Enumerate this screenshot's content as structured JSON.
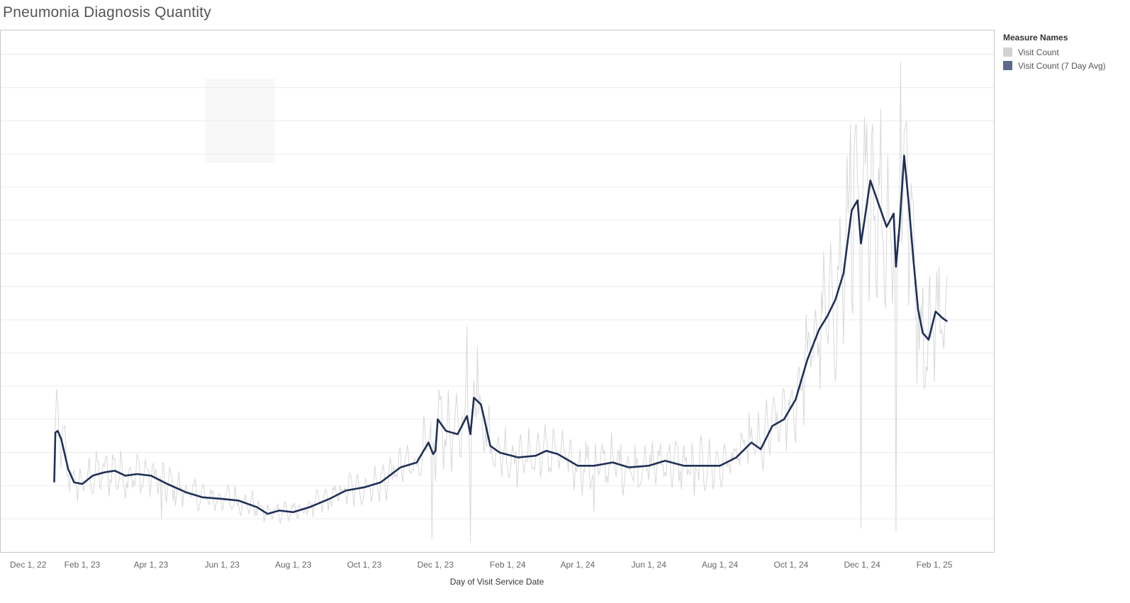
{
  "title": "Pneumonia Diagnosis Quantity",
  "legend": {
    "title": "Measure Names",
    "items": [
      {
        "label": "Visit Count",
        "color": "#d3d3d3"
      },
      {
        "label": "Visit Count (7 Day Avg)",
        "color": "#5b6a8c"
      }
    ]
  },
  "colors": {
    "raw_line": "#d8d8d8",
    "avg_line": "#1f2f57",
    "grid": "#ececec",
    "frame": "#c8c8c8",
    "shaded_box": "#f8f8f8"
  },
  "chart_data": {
    "type": "line",
    "title": "Pneumonia Diagnosis Quantity",
    "xlabel": "Day of Visit Service Date",
    "ylabel": "",
    "y_axis_labels_shown": false,
    "grid": true,
    "legend_position": "right",
    "x_ticks": [
      "Dec 1, 22",
      "Feb 1, 23",
      "Apr 1, 23",
      "Jun 1, 23",
      "Aug 1, 23",
      "Oct 1, 23",
      "Dec 1, 23",
      "Feb 1, 24",
      "Apr 1, 24",
      "Jun 1, 24",
      "Aug 1, 24",
      "Oct 1, 24",
      "Dec 1, 24",
      "Feb 1, 25"
    ],
    "xlim": [
      "2022-12-01",
      "2025-03-24"
    ],
    "ylim": [
      0,
      15.7
    ],
    "series": [
      {
        "name": "Visit Count (7 Day Avg)",
        "points": [
          [
            "2023-01-08",
            2.1
          ],
          [
            "2023-01-09",
            3.6
          ],
          [
            "2023-01-11",
            3.65
          ],
          [
            "2023-01-14",
            3.4
          ],
          [
            "2023-01-20",
            2.5
          ],
          [
            "2023-01-25",
            2.1
          ],
          [
            "2023-02-01",
            2.05
          ],
          [
            "2023-02-10",
            2.3
          ],
          [
            "2023-02-20",
            2.4
          ],
          [
            "2023-03-01",
            2.45
          ],
          [
            "2023-03-10",
            2.3
          ],
          [
            "2023-03-20",
            2.35
          ],
          [
            "2023-04-01",
            2.3
          ],
          [
            "2023-04-15",
            2.05
          ],
          [
            "2023-05-01",
            1.8
          ],
          [
            "2023-05-15",
            1.65
          ],
          [
            "2023-06-01",
            1.6
          ],
          [
            "2023-06-15",
            1.55
          ],
          [
            "2023-07-01",
            1.35
          ],
          [
            "2023-07-10",
            1.15
          ],
          [
            "2023-07-20",
            1.25
          ],
          [
            "2023-08-01",
            1.2
          ],
          [
            "2023-08-15",
            1.35
          ],
          [
            "2023-09-01",
            1.6
          ],
          [
            "2023-09-15",
            1.85
          ],
          [
            "2023-10-01",
            1.95
          ],
          [
            "2023-10-15",
            2.1
          ],
          [
            "2023-11-01",
            2.55
          ],
          [
            "2023-11-15",
            2.7
          ],
          [
            "2023-11-25",
            3.3
          ],
          [
            "2023-11-29",
            2.95
          ],
          [
            "2023-12-01",
            3.05
          ],
          [
            "2023-12-03",
            4.0
          ],
          [
            "2023-12-10",
            3.65
          ],
          [
            "2023-12-20",
            3.55
          ],
          [
            "2023-12-28",
            4.1
          ],
          [
            "2023-12-31",
            3.55
          ],
          [
            "2024-01-03",
            4.65
          ],
          [
            "2024-01-09",
            4.45
          ],
          [
            "2024-01-12",
            4.0
          ],
          [
            "2024-01-17",
            3.2
          ],
          [
            "2024-01-25",
            3.0
          ],
          [
            "2024-02-10",
            2.85
          ],
          [
            "2024-02-25",
            2.9
          ],
          [
            "2024-03-05",
            3.05
          ],
          [
            "2024-03-15",
            2.95
          ],
          [
            "2024-04-01",
            2.6
          ],
          [
            "2024-04-15",
            2.6
          ],
          [
            "2024-05-01",
            2.7
          ],
          [
            "2024-05-15",
            2.55
          ],
          [
            "2024-06-01",
            2.6
          ],
          [
            "2024-06-15",
            2.75
          ],
          [
            "2024-07-01",
            2.6
          ],
          [
            "2024-07-15",
            2.6
          ],
          [
            "2024-08-01",
            2.6
          ],
          [
            "2024-08-15",
            2.85
          ],
          [
            "2024-08-28",
            3.3
          ],
          [
            "2024-09-05",
            3.1
          ],
          [
            "2024-09-15",
            3.8
          ],
          [
            "2024-09-25",
            4.0
          ],
          [
            "2024-10-05",
            4.6
          ],
          [
            "2024-10-15",
            5.8
          ],
          [
            "2024-10-25",
            6.7
          ],
          [
            "2024-11-01",
            7.1
          ],
          [
            "2024-11-08",
            7.6
          ],
          [
            "2024-11-15",
            8.4
          ],
          [
            "2024-11-22",
            10.3
          ],
          [
            "2024-11-27",
            10.6
          ],
          [
            "2024-11-30",
            9.3
          ],
          [
            "2024-12-03",
            10.0
          ],
          [
            "2024-12-08",
            11.2
          ],
          [
            "2024-12-15",
            10.5
          ],
          [
            "2024-12-22",
            9.8
          ],
          [
            "2024-12-28",
            10.2
          ],
          [
            "2024-12-30",
            8.6
          ],
          [
            "2025-01-02",
            9.8
          ],
          [
            "2025-01-06",
            11.95
          ],
          [
            "2025-01-10",
            10.5
          ],
          [
            "2025-01-14",
            8.8
          ],
          [
            "2025-01-18",
            7.3
          ],
          [
            "2025-01-22",
            6.6
          ],
          [
            "2025-01-27",
            6.4
          ],
          [
            "2025-02-02",
            7.25
          ],
          [
            "2025-02-08",
            7.05
          ],
          [
            "2025-02-12",
            6.95
          ]
        ]
      }
    ]
  }
}
